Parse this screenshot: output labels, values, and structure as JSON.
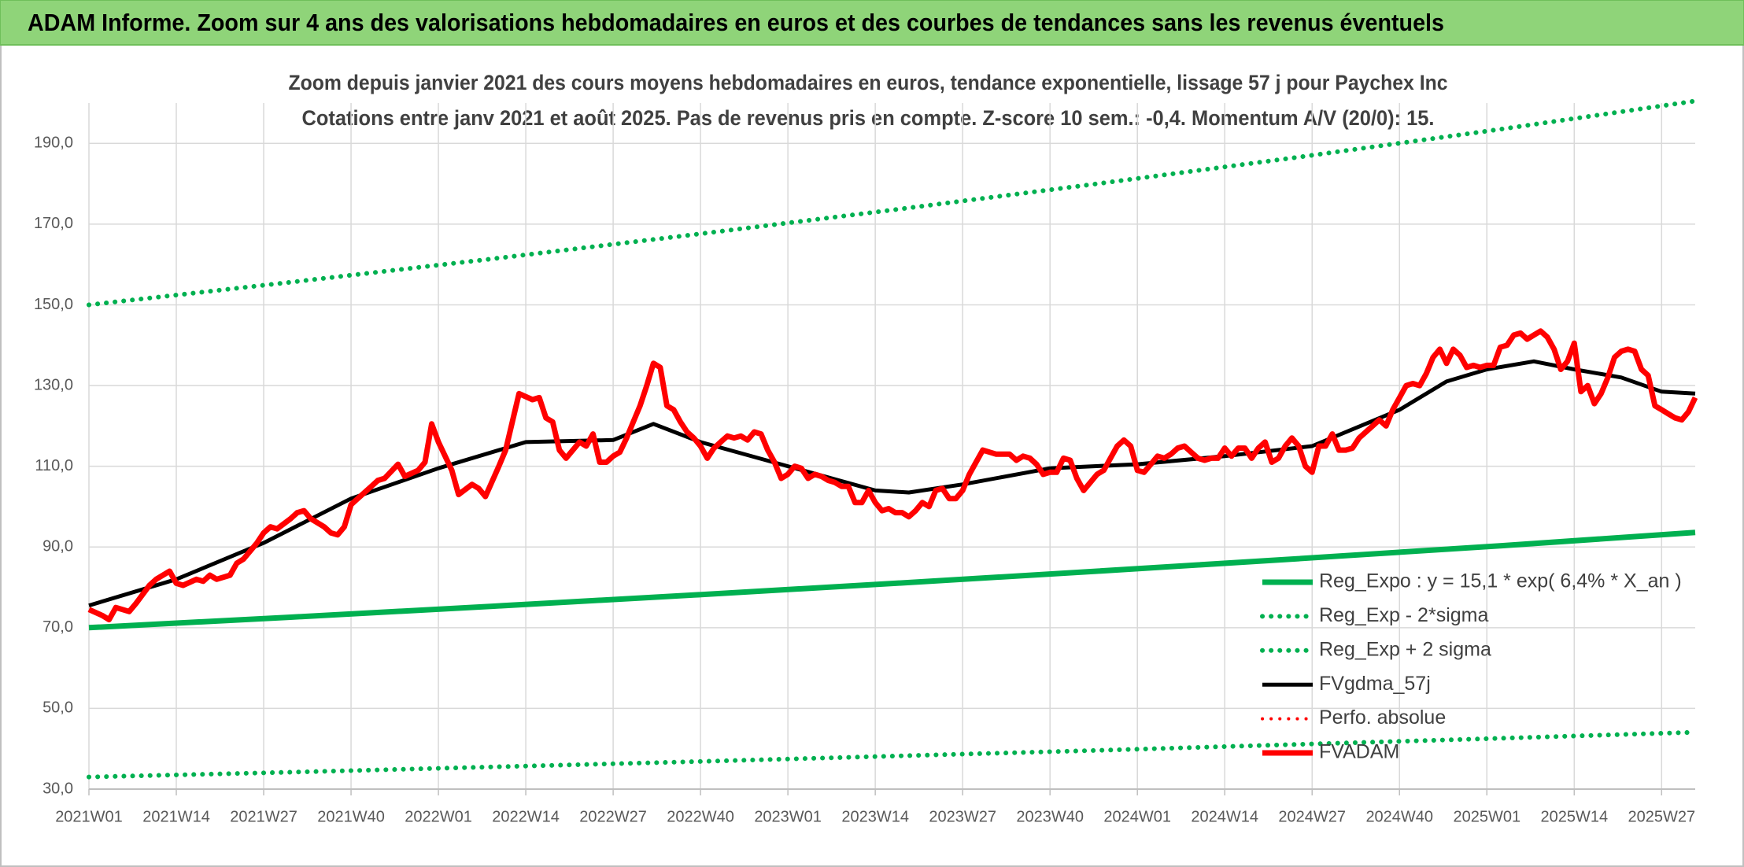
{
  "chart_data": {
    "type": "line",
    "title": "ADAM Informe. Zoom sur 4 ans des valorisations hebdomadaires en euros et des courbes de tendances sans les revenus éventuels",
    "subtitle": [
      "Zoom depuis janvier 2021 des cours moyens hebdomadaires en euros, tendance exponentielle, lissage 57 j pour Paychex Inc",
      "Cotations entre janv 2021 et août 2025. Pas de revenus pris en compte. Z-score 10 sem.: -0,4. Momentum A/V (20/0): 15."
    ],
    "xlim": [
      0,
      239
    ],
    "xticks": [
      {
        "value": 0,
        "label": "2021W01"
      },
      {
        "value": 13,
        "label": "2021W14"
      },
      {
        "value": 26,
        "label": "2021W27"
      },
      {
        "value": 39,
        "label": "2021W40"
      },
      {
        "value": 52,
        "label": "2022W01"
      },
      {
        "value": 65,
        "label": "2022W14"
      },
      {
        "value": 78,
        "label": "2022W27"
      },
      {
        "value": 91,
        "label": "2022W40"
      },
      {
        "value": 104,
        "label": "2023W01"
      },
      {
        "value": 117,
        "label": "2023W14"
      },
      {
        "value": 130,
        "label": "2023W27"
      },
      {
        "value": 143,
        "label": "2023W40"
      },
      {
        "value": 156,
        "label": "2024W01"
      },
      {
        "value": 169,
        "label": "2024W14"
      },
      {
        "value": 182,
        "label": "2024W27"
      },
      {
        "value": 195,
        "label": "2024W40"
      },
      {
        "value": 208,
        "label": "2025W01"
      },
      {
        "value": 221,
        "label": "2025W14"
      },
      {
        "value": 234,
        "label": "2025W27"
      }
    ],
    "ylim": [
      30,
      200
    ],
    "yticks": [
      {
        "value": 30,
        "label": "30,0"
      },
      {
        "value": 50,
        "label": "50,0"
      },
      {
        "value": 70,
        "label": "70,0"
      },
      {
        "value": 90,
        "label": "90,0"
      },
      {
        "value": 110,
        "label": "110,0"
      },
      {
        "value": 130,
        "label": "130,0"
      },
      {
        "value": 150,
        "label": "150,0"
      },
      {
        "value": 170,
        "label": "170,0"
      },
      {
        "value": 190,
        "label": "190,0"
      }
    ],
    "grid": true,
    "legend": "lower right",
    "series": [
      {
        "name": "Reg_Expo : y = 15,1 * exp( 6,4% *  X_an )",
        "color": "#00b050",
        "style": "solid",
        "x": [
          0,
          30,
          60,
          90,
          120,
          150,
          180,
          210,
          239
        ],
        "values": [
          70.0,
          72.6,
          75.3,
          78.1,
          81.0,
          84.0,
          87.1,
          90.3,
          93.6
        ]
      },
      {
        "name": "Reg_Exp - 2*sigma",
        "color": "#00b050",
        "style": "dotted",
        "x": [
          0,
          30,
          60,
          90,
          120,
          150,
          180,
          210,
          239
        ],
        "values": [
          33.0,
          34.2,
          35.5,
          36.8,
          38.2,
          39.6,
          41.1,
          42.6,
          44.1
        ]
      },
      {
        "name": "Reg_Exp + 2 sigma",
        "color": "#00b050",
        "style": "dotted",
        "x": [
          0,
          30,
          60,
          90,
          120,
          150,
          180,
          210,
          239
        ],
        "values": [
          150.0,
          155.6,
          161.4,
          167.4,
          173.6,
          180.0,
          186.6,
          193.5,
          200.5
        ]
      },
      {
        "name": "FVgdma_57j",
        "color": "#000000",
        "style": "solid",
        "x": [
          0,
          13,
          26,
          39,
          52,
          65,
          78,
          84,
          91,
          104,
          117,
          122,
          130,
          143,
          156,
          169,
          182,
          195,
          202,
          208,
          215,
          221,
          228,
          234,
          239
        ],
        "values": [
          75.5,
          82,
          91,
          102,
          109.5,
          116,
          116.5,
          120.5,
          116,
          110,
          104,
          103.5,
          105.5,
          109.5,
          110.5,
          112.5,
          115,
          124,
          131,
          134,
          136,
          134,
          132,
          128.5,
          128
        ]
      },
      {
        "name": "Perfo. absolue",
        "color": "#ff0000",
        "style": "dotted",
        "x": [],
        "values": []
      },
      {
        "name": "FVADAM",
        "color": "#ff0000",
        "style": "solid",
        "x": [
          0,
          2,
          3,
          4,
          6,
          7,
          9,
          10,
          12,
          13,
          14,
          16,
          17,
          18,
          19,
          21,
          22,
          23,
          25,
          26,
          27,
          28,
          30,
          31,
          32,
          33,
          35,
          36,
          37,
          38,
          39,
          40,
          42,
          43,
          44,
          46,
          47,
          49,
          50,
          51,
          52,
          54,
          55,
          57,
          58,
          59,
          61,
          62,
          63,
          64,
          66,
          67,
          68,
          69,
          70,
          71,
          73,
          74,
          75,
          76,
          77,
          78,
          79,
          80,
          81,
          82,
          83,
          84,
          85,
          86,
          87,
          88,
          89,
          90,
          91,
          92,
          93,
          94,
          95,
          96,
          97,
          98,
          99,
          100,
          101,
          102,
          103,
          104,
          105,
          106,
          107,
          108,
          109,
          110,
          111,
          112,
          113,
          114,
          115,
          116,
          117,
          118,
          119,
          120,
          121,
          122,
          123,
          124,
          125,
          126,
          127,
          128,
          129,
          130,
          131,
          132,
          133,
          134,
          135,
          137,
          138,
          139,
          140,
          141,
          142,
          143,
          144,
          145,
          146,
          147,
          148,
          149,
          150,
          151,
          152,
          153,
          154,
          155,
          156,
          157,
          158,
          159,
          160,
          161,
          162,
          163,
          164,
          165,
          166,
          167,
          168,
          169,
          170,
          171,
          172,
          173,
          174,
          175,
          176,
          177,
          178,
          179,
          180,
          181,
          182,
          183,
          184,
          185,
          186,
          187,
          188,
          189,
          190,
          191,
          192,
          193,
          194,
          195,
          196,
          197,
          198,
          199,
          200,
          201,
          202,
          203,
          204,
          205,
          206,
          207,
          208,
          209,
          210,
          211,
          212,
          213,
          214,
          215,
          216,
          217,
          218,
          219,
          220,
          221,
          222,
          223,
          224,
          225,
          226,
          227,
          228,
          229,
          230,
          231,
          232,
          233,
          234,
          235,
          236,
          237,
          238,
          239
        ],
        "values": [
          74.5,
          73,
          72,
          75,
          74,
          76,
          80.5,
          82,
          84,
          81,
          80.5,
          82,
          81.5,
          83,
          82,
          83,
          86,
          87,
          91,
          93.5,
          95,
          94.5,
          97,
          98.5,
          99,
          97,
          95,
          93.5,
          93,
          95,
          100.5,
          102,
          105,
          106.5,
          107,
          110.5,
          107.5,
          109,
          111,
          120.5,
          116,
          109,
          103,
          105.5,
          104.5,
          102.5,
          110,
          114,
          121,
          128,
          126.5,
          127,
          122,
          121,
          114,
          112,
          116,
          115,
          118,
          111,
          111,
          112.5,
          113.5,
          117,
          121,
          125,
          130,
          135.5,
          134.5,
          125,
          124,
          121,
          118.5,
          117,
          115,
          112,
          114.5,
          116,
          117.5,
          117,
          117.5,
          116.5,
          118.5,
          118,
          114,
          111,
          107,
          108,
          110,
          109.5,
          107,
          108,
          107.5,
          106.5,
          106,
          105,
          105,
          101,
          101,
          104,
          101,
          99,
          99.5,
          98.5,
          98.5,
          97.5,
          99,
          101,
          100,
          104,
          104.5,
          102,
          102,
          104,
          108,
          111,
          114,
          113.5,
          113,
          113,
          111.5,
          112.5,
          112,
          110.5,
          108,
          108.5,
          108.5,
          112,
          111.5,
          107,
          104,
          106,
          108,
          109,
          112,
          115,
          116.5,
          115,
          109,
          108.5,
          110.5,
          112.5,
          112,
          113,
          114.5,
          115,
          113.5,
          112,
          111.5,
          112,
          112,
          114.5,
          112.5,
          114.5,
          114.5,
          112,
          114.5,
          116,
          111,
          112,
          115,
          117,
          115,
          110,
          108.5,
          115,
          115,
          118,
          114,
          114,
          114.5,
          117,
          118.5,
          120,
          121.5,
          120,
          124,
          127,
          130,
          130.5,
          130,
          133,
          137,
          139,
          135.5,
          139,
          137.5,
          134.5,
          135,
          134.5,
          135,
          135,
          139.5,
          140,
          142.5,
          143,
          141.5,
          142.5,
          143.5,
          142,
          139,
          134,
          136,
          140.5,
          128.5,
          130,
          125.5,
          128,
          132,
          137,
          138.5,
          139,
          138.5,
          134,
          132.5,
          125,
          124,
          123,
          122,
          121.5,
          123.5,
          127
        ]
      }
    ]
  }
}
